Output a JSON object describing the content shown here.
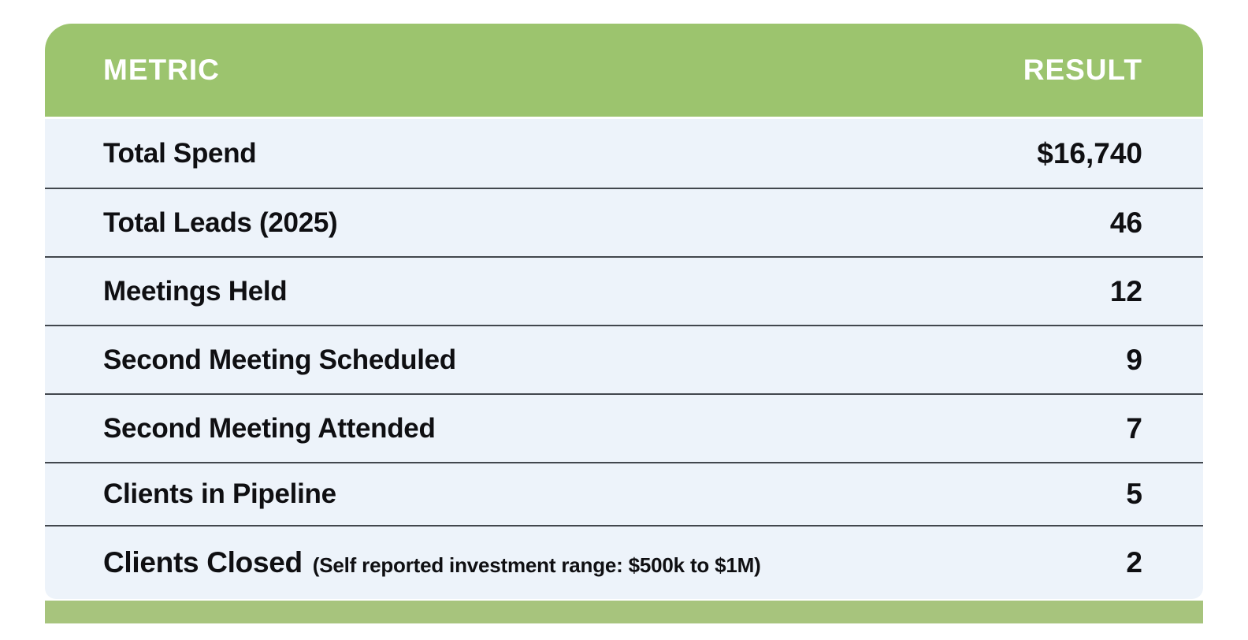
{
  "table": {
    "header": {
      "metric": "METRIC",
      "result": "RESULT"
    },
    "rows": [
      {
        "metric": "Total Spend",
        "result": "$16,740"
      },
      {
        "metric": "Total Leads (2025)",
        "result": "46"
      },
      {
        "metric": "Meetings Held",
        "result": "12"
      },
      {
        "metric": "Second Meeting Scheduled",
        "result": "9"
      },
      {
        "metric": "Second Meeting Attended",
        "result": "7"
      },
      {
        "metric": "Clients in Pipeline",
        "result": "5"
      },
      {
        "metric": "Clients Closed",
        "note": "(Self reported investment range: $500k to $1M)",
        "result": "2"
      }
    ]
  },
  "colors": {
    "header_green": "#9cc46e",
    "footer_green": "#a7c47d",
    "row_blue": "#edf3fa",
    "divider": "#42474d",
    "text": "#0f0f12",
    "header_text": "#ffffff"
  },
  "chart_data": {
    "type": "table",
    "columns": [
      "METRIC",
      "RESULT"
    ],
    "rows": [
      [
        "Total Spend",
        "$16,740"
      ],
      [
        "Total Leads (2025)",
        "46"
      ],
      [
        "Meetings Held",
        "12"
      ],
      [
        "Second Meeting Scheduled",
        "9"
      ],
      [
        "Second Meeting Attended",
        "7"
      ],
      [
        "Clients in Pipeline",
        "5"
      ],
      [
        "Clients Closed (Self reported investment range: $500k to $1M)",
        "2"
      ]
    ],
    "layout_hints": {
      "header_background": "#9cc46e",
      "row_background": "#edf3fa",
      "metric_align": "left",
      "result_align": "right",
      "footer_accent_bar": true
    }
  }
}
